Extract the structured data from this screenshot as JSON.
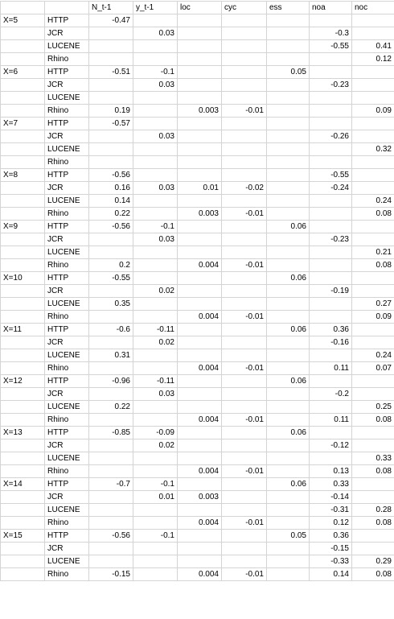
{
  "header": [
    "",
    "",
    "N_t-1",
    "y_t-1",
    "loc",
    "cyc",
    "ess",
    "noa",
    "noc"
  ],
  "rows": [
    [
      "X=5",
      "HTTP",
      "-0.47",
      "",
      "",
      "",
      "",
      "",
      ""
    ],
    [
      "",
      "JCR",
      "",
      "0.03",
      "",
      "",
      "",
      "-0.3",
      ""
    ],
    [
      "",
      "LUCENE",
      "",
      "",
      "",
      "",
      "",
      "-0.55",
      "0.41"
    ],
    [
      "",
      "Rhino",
      "",
      "",
      "",
      "",
      "",
      "",
      "0.12"
    ],
    [
      "X=6",
      "HTTP",
      "-0.51",
      "-0.1",
      "",
      "",
      "0.05",
      "",
      ""
    ],
    [
      "",
      "JCR",
      "",
      "0.03",
      "",
      "",
      "",
      "-0.23",
      ""
    ],
    [
      "",
      "LUCENE",
      "",
      "",
      "",
      "",
      "",
      "",
      ""
    ],
    [
      "",
      "Rhino",
      "0.19",
      "",
      "0.003",
      "-0.01",
      "",
      "",
      "0.09"
    ],
    [
      "X=7",
      "HTTP",
      "-0.57",
      "",
      "",
      "",
      "",
      "",
      ""
    ],
    [
      "",
      "JCR",
      "",
      "0.03",
      "",
      "",
      "",
      "-0.26",
      ""
    ],
    [
      "",
      "LUCENE",
      "",
      "",
      "",
      "",
      "",
      "",
      "0.32"
    ],
    [
      "",
      "Rhino",
      "",
      "",
      "",
      "",
      "",
      "",
      ""
    ],
    [
      "X=8",
      "HTTP",
      "-0.56",
      "",
      "",
      "",
      "",
      "-0.55",
      ""
    ],
    [
      "",
      "JCR",
      "0.16",
      "0.03",
      "0.01",
      "-0.02",
      "",
      "-0.24",
      ""
    ],
    [
      "",
      "LUCENE",
      "0.14",
      "",
      "",
      "",
      "",
      "",
      "0.24"
    ],
    [
      "",
      "Rhino",
      "0.22",
      "",
      "0.003",
      "-0.01",
      "",
      "",
      "0.08"
    ],
    [
      "X=9",
      "HTTP",
      "-0.56",
      "-0.1",
      "",
      "",
      "0.06",
      "",
      ""
    ],
    [
      "",
      "JCR",
      "",
      "0.03",
      "",
      "",
      "",
      "-0.23",
      ""
    ],
    [
      "",
      "LUCENE",
      "",
      "",
      "",
      "",
      "",
      "",
      "0.21"
    ],
    [
      "",
      "Rhino",
      "0.2",
      "",
      "0.004",
      "-0.01",
      "",
      "",
      "0.08"
    ],
    [
      "X=10",
      "HTTP",
      "-0.55",
      "",
      "",
      "",
      "0.06",
      "",
      ""
    ],
    [
      "",
      "JCR",
      "",
      "0.02",
      "",
      "",
      "",
      "-0.19",
      ""
    ],
    [
      "",
      "LUCENE",
      "0.35",
      "",
      "",
      "",
      "",
      "",
      "0.27"
    ],
    [
      "",
      "Rhino",
      "",
      "",
      "0.004",
      "-0.01",
      "",
      "",
      "0.09"
    ],
    [
      "X=11",
      "HTTP",
      "-0.6",
      "-0.11",
      "",
      "",
      "0.06",
      "0.36",
      ""
    ],
    [
      "",
      "JCR",
      "",
      "0.02",
      "",
      "",
      "",
      "-0.16",
      ""
    ],
    [
      "",
      "LUCENE",
      "0.31",
      "",
      "",
      "",
      "",
      "",
      "0.24"
    ],
    [
      "",
      "Rhino",
      "",
      "",
      "0.004",
      "-0.01",
      "",
      "0.11",
      "0.07"
    ],
    [
      "X=12",
      "HTTP",
      "-0.96",
      "-0.11",
      "",
      "",
      "0.06",
      "",
      ""
    ],
    [
      "",
      "JCR",
      "",
      "0.03",
      "",
      "",
      "",
      "-0.2",
      ""
    ],
    [
      "",
      "LUCENE",
      "0.22",
      "",
      "",
      "",
      "",
      "",
      "0.25"
    ],
    [
      "",
      "Rhino",
      "",
      "",
      "0.004",
      "-0.01",
      "",
      "0.11",
      "0.08"
    ],
    [
      "X=13",
      "HTTP",
      "-0.85",
      "-0.09",
      "",
      "",
      "0.06",
      "",
      ""
    ],
    [
      "",
      "JCR",
      "",
      "0.02",
      "",
      "",
      "",
      "-0.12",
      ""
    ],
    [
      "",
      "LUCENE",
      "",
      "",
      "",
      "",
      "",
      "",
      "0.33"
    ],
    [
      "",
      "Rhino",
      "",
      "",
      "0.004",
      "-0.01",
      "",
      "0.13",
      "0.08"
    ],
    [
      "X=14",
      "HTTP",
      "-0.7",
      "-0.1",
      "",
      "",
      "0.06",
      "0.33",
      ""
    ],
    [
      "",
      "JCR",
      "",
      "0.01",
      "0.003",
      "",
      "",
      "-0.14",
      ""
    ],
    [
      "",
      "LUCENE",
      "",
      "",
      "",
      "",
      "",
      "-0.31",
      "0.28"
    ],
    [
      "",
      "Rhino",
      "",
      "",
      "0.004",
      "-0.01",
      "",
      "0.12",
      "0.08"
    ],
    [
      "X=15",
      "HTTP",
      "-0.56",
      "-0.1",
      "",
      "",
      "0.05",
      "0.36",
      ""
    ],
    [
      "",
      "JCR",
      "",
      "",
      "",
      "",
      "",
      "-0.15",
      ""
    ],
    [
      "",
      "LUCENE",
      "",
      "",
      "",
      "",
      "",
      "-0.33",
      "0.29"
    ],
    [
      "",
      "Rhino",
      "-0.15",
      "",
      "0.004",
      "-0.01",
      "",
      "0.14",
      "0.08"
    ]
  ]
}
